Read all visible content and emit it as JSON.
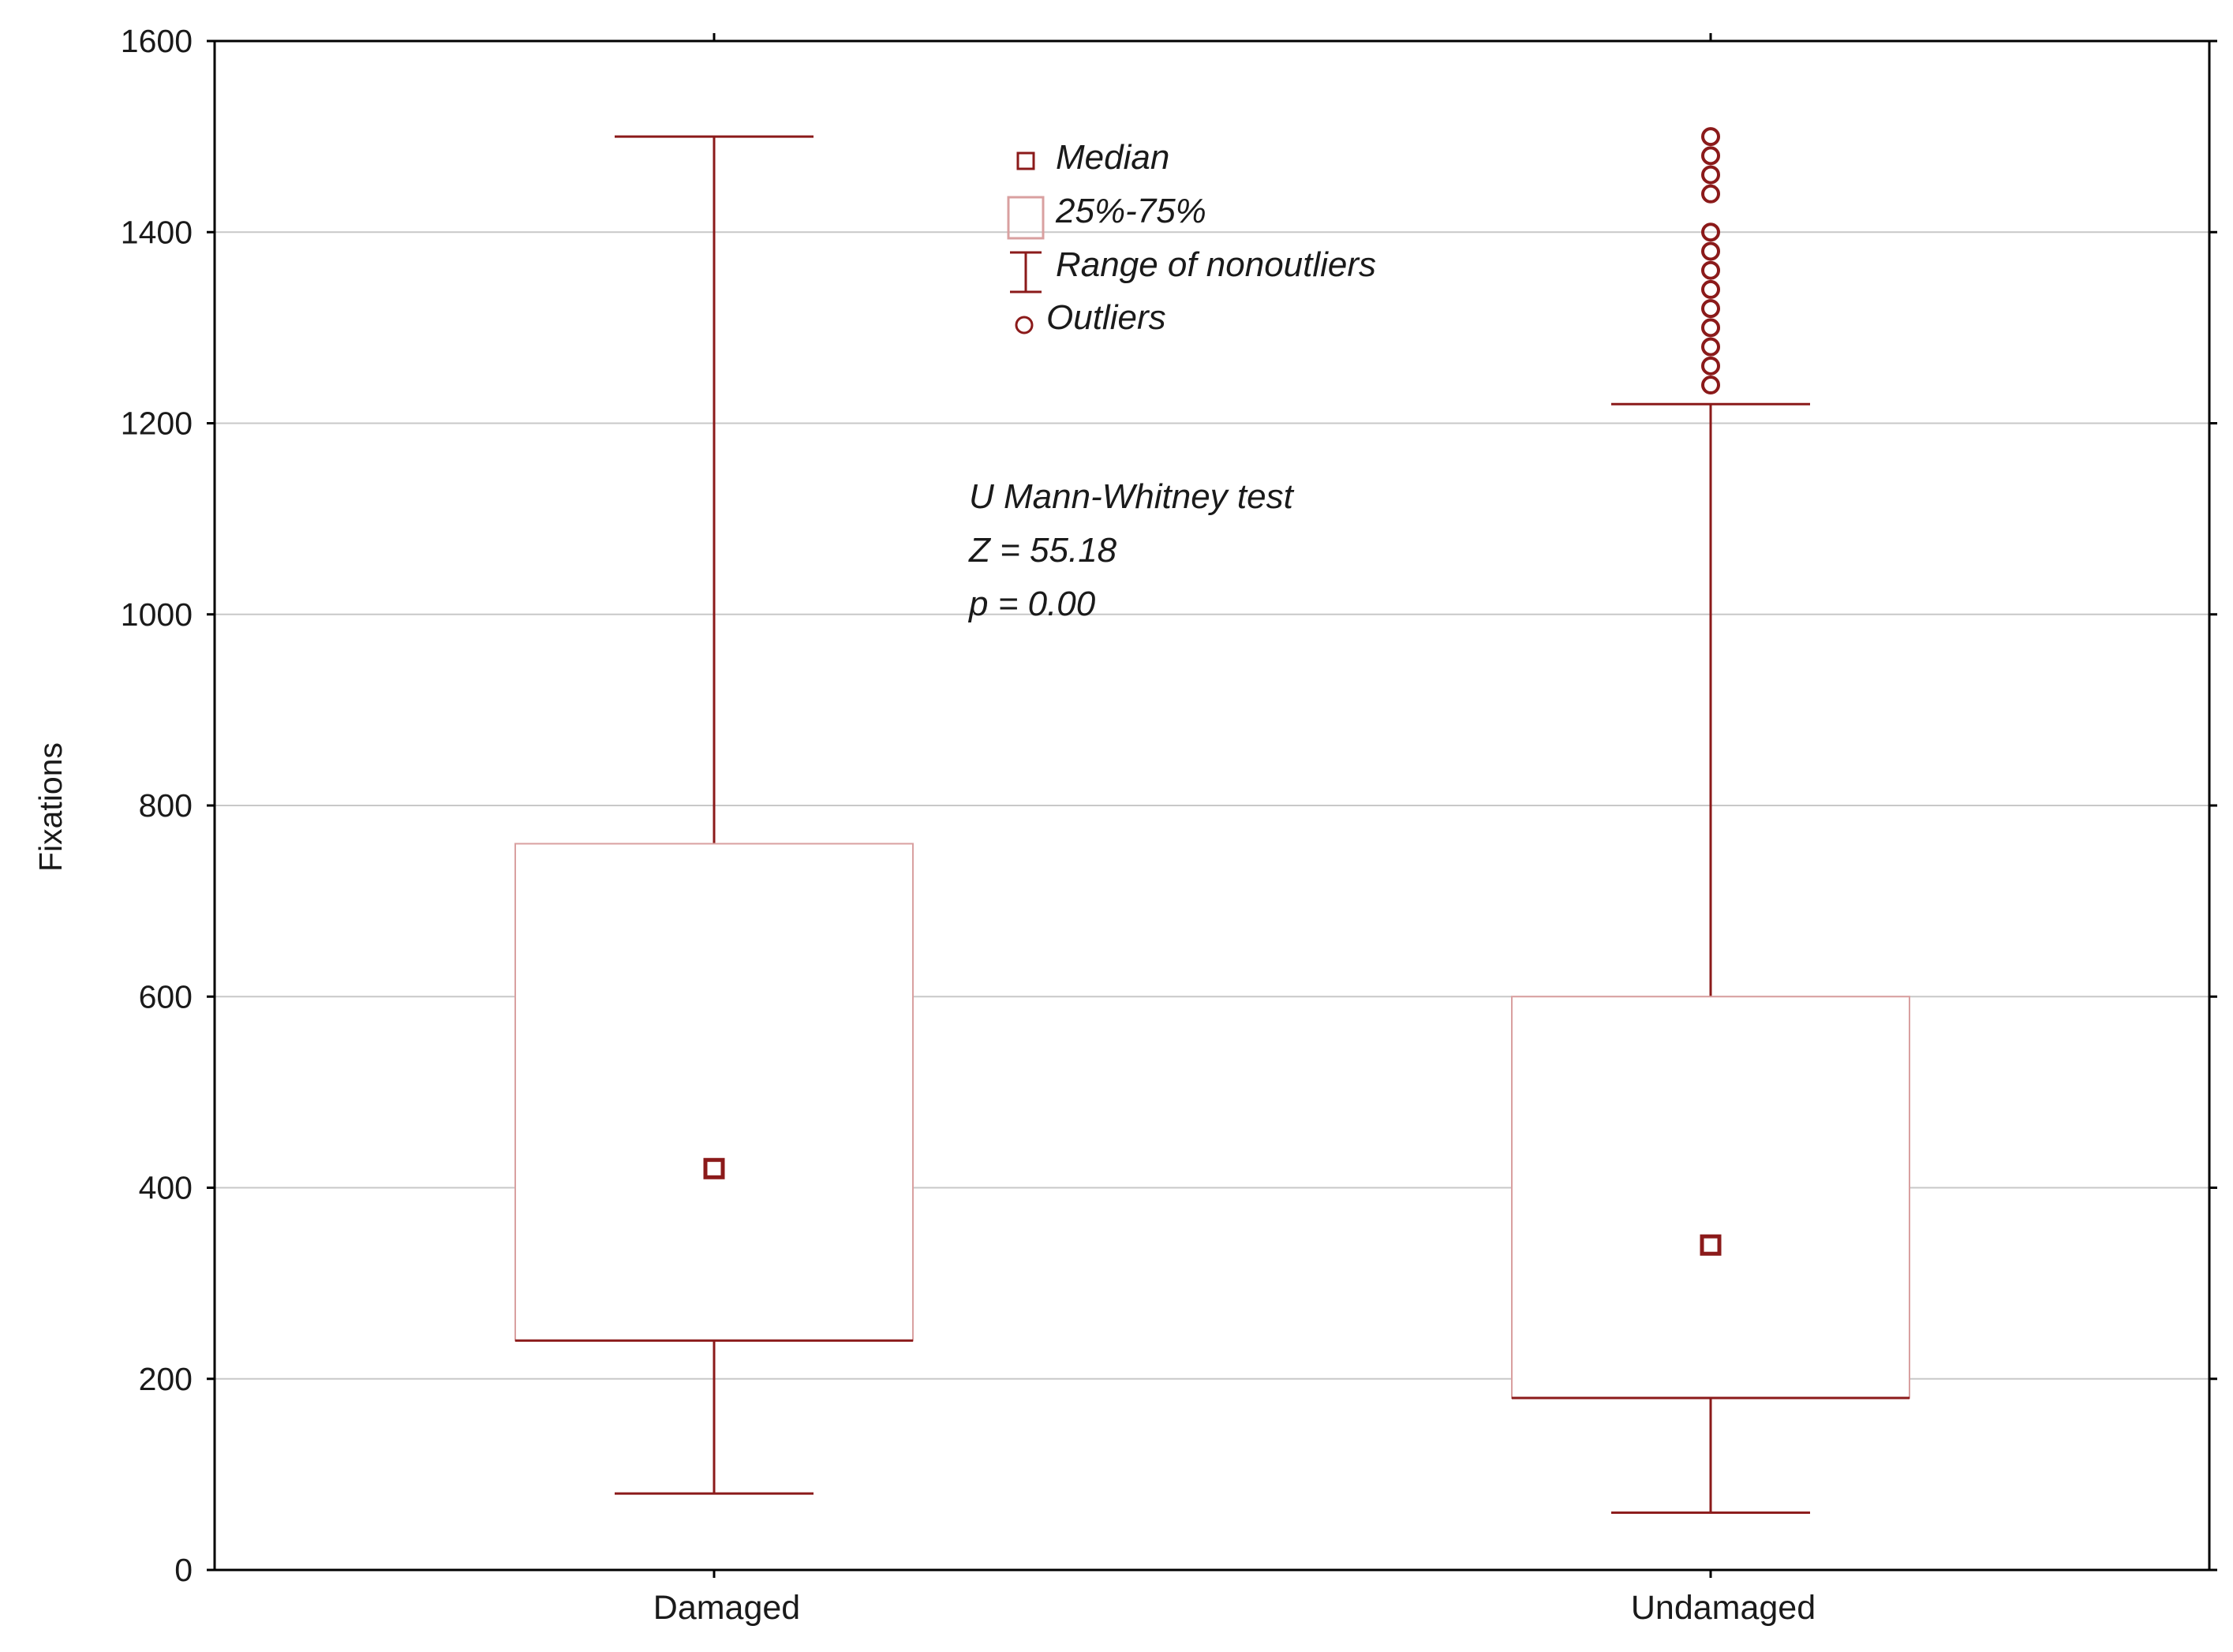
{
  "chart_data": {
    "type": "boxplot",
    "ylabel": "Fixations",
    "xlabel": "",
    "ylim": [
      0,
      1600
    ],
    "yticks": [
      "0",
      "200",
      "400",
      "600",
      "800",
      "1000",
      "1200",
      "1400",
      "1600"
    ],
    "grid": true,
    "categories": [
      "Damaged",
      "Undamaged"
    ],
    "boxes": [
      {
        "category": "Damaged",
        "median": 420,
        "q1": 240,
        "q3": 760,
        "whisker_low": 80,
        "whisker_high": 1500,
        "outliers": []
      },
      {
        "category": "Undamaged",
        "median": 340,
        "q1": 180,
        "q3": 600,
        "whisker_low": 60,
        "whisker_high": 1220,
        "outliers": [
          1240,
          1260,
          1280,
          1300,
          1320,
          1340,
          1360,
          1380,
          1400,
          1440,
          1460,
          1480,
          1500
        ]
      }
    ],
    "legend": {
      "placement": "top-center",
      "entries": [
        "Median",
        "25%-75%",
        "Range of nonoutliers",
        "Outliers"
      ]
    },
    "annotation": [
      "U Mann-Whitney test",
      "Z = 55.18",
      "p = 0.00"
    ],
    "colors": {
      "series": "#8b1a1a",
      "box_edge": "#d9a0a0",
      "grid": "#c8c8c8",
      "axis": "#000000"
    }
  }
}
